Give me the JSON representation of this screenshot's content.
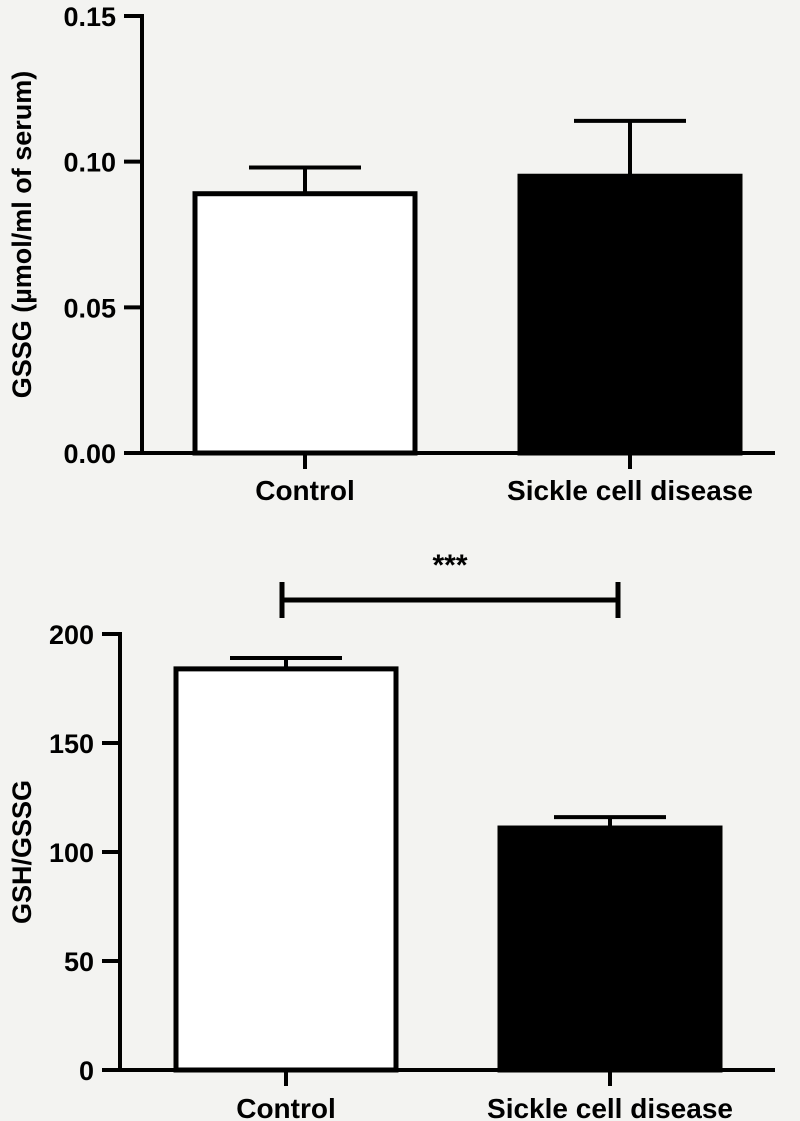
{
  "chart_data": [
    {
      "type": "bar",
      "categories": [
        "Control",
        "Sickle cell disease"
      ],
      "values": [
        0.089,
        0.095
      ],
      "errors": [
        0.009,
        0.019
      ],
      "bar_colors": [
        "#ffffff",
        "#000000"
      ],
      "ylabel": "GSSG (µmol/ml of serum)",
      "xlabel": "",
      "ylim": [
        0,
        0.15
      ],
      "yticks": [
        "0.00",
        "0.05",
        "0.10",
        "0.15"
      ],
      "grid": false
    },
    {
      "type": "bar",
      "categories": [
        "Control",
        "Sickle cell disease"
      ],
      "values": [
        184,
        111
      ],
      "errors": [
        5,
        5
      ],
      "bar_colors": [
        "#ffffff",
        "#000000"
      ],
      "ylabel": "GSH/GSSG",
      "xlabel": "",
      "ylim": [
        0,
        200
      ],
      "yticks": [
        "0",
        "50",
        "100",
        "150",
        "200"
      ],
      "significance": "***",
      "grid": false
    }
  ]
}
